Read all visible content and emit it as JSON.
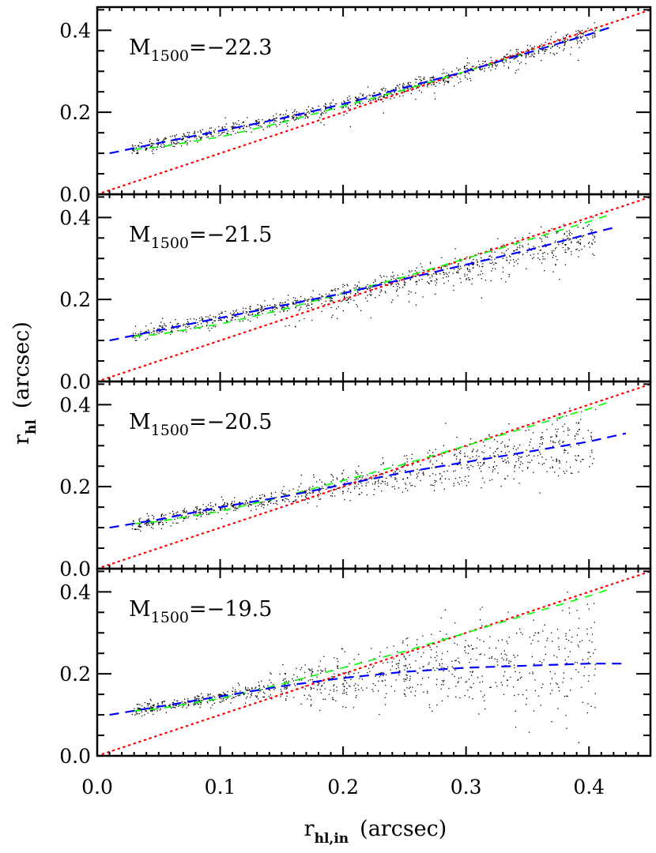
{
  "figure": {
    "xlabel": {
      "main": "r",
      "sub": "hl,in",
      "unit": "(arcsec)"
    },
    "ylabel": {
      "main": "r",
      "sub": "hl",
      "unit": "(arcsec)"
    },
    "colors": {
      "scatter": "#000000",
      "blue_fit": "#0000ff",
      "green_model": "#00ff00",
      "red_one_to_one": "#ff0000",
      "axes": "#000000"
    }
  },
  "chart_data": {
    "type": "scatter",
    "layout": "4 vertically stacked panels sharing x-axis",
    "xlabel": "r_hl,in (arcsec)",
    "ylabel": "r_hl (arcsec)",
    "xlim": [
      0.0,
      0.45
    ],
    "ylim": [
      -0.01,
      0.45
    ],
    "xticks": [
      "0.0",
      "0.1",
      "0.2",
      "0.3",
      "0.4"
    ],
    "yticks": [
      "0.0",
      "0.2",
      "0.4"
    ],
    "grid": false,
    "legend": "none",
    "series_descriptions": {
      "scatter": "black points: measured r_hl vs input r_hl for simulated galaxies",
      "blue_dashed": "blue dashed line: median relation / fit",
      "green_dashed": "green dashed line: expected relation (PSF-convolved)",
      "red_dotted": "red dotted line: one-to-one relation r_hl = r_hl,in"
    },
    "panels": [
      {
        "label_main": "M",
        "label_sub": "1500",
        "label_value": "=−22.3",
        "blue_dashed": {
          "x": [
            0.01,
            0.05,
            0.1,
            0.15,
            0.2,
            0.25,
            0.3,
            0.35,
            0.4,
            0.42
          ],
          "y": [
            0.1,
            0.125,
            0.155,
            0.185,
            0.22,
            0.26,
            0.3,
            0.345,
            0.39,
            0.41
          ]
        },
        "green_dashed": {
          "x": [
            0.03,
            0.05,
            0.1,
            0.15,
            0.2,
            0.25,
            0.3,
            0.35,
            0.4,
            0.42
          ],
          "y": [
            0.11,
            0.115,
            0.14,
            0.175,
            0.215,
            0.255,
            0.3,
            0.345,
            0.39,
            0.41
          ]
        },
        "red_dotted": {
          "x": [
            0.0,
            0.45
          ],
          "y": [
            0.0,
            0.45
          ]
        },
        "scatter_range": {
          "x": [
            0.03,
            0.4
          ],
          "y_spread": "tight, ~±0.015 around blue line, few low outliers above x=0.2"
        }
      },
      {
        "label_main": "M",
        "label_sub": "1500",
        "label_value": "=−21.5",
        "blue_dashed": {
          "x": [
            0.01,
            0.05,
            0.1,
            0.15,
            0.2,
            0.25,
            0.3,
            0.35,
            0.4,
            0.42
          ],
          "y": [
            0.1,
            0.125,
            0.155,
            0.185,
            0.215,
            0.25,
            0.285,
            0.32,
            0.36,
            0.375
          ]
        },
        "green_dashed": {
          "x": [
            0.03,
            0.05,
            0.1,
            0.15,
            0.2,
            0.25,
            0.3,
            0.35,
            0.4,
            0.42
          ],
          "y": [
            0.11,
            0.115,
            0.14,
            0.175,
            0.215,
            0.255,
            0.3,
            0.345,
            0.39,
            0.41
          ]
        },
        "red_dotted": {
          "x": [
            0.0,
            0.45
          ],
          "y": [
            0.0,
            0.45
          ]
        },
        "scatter_range": {
          "x": [
            0.03,
            0.4
          ],
          "y_spread": "moderate, increasing scatter beyond x=0.2"
        }
      },
      {
        "label_main": "M",
        "label_sub": "1500",
        "label_value": "=−20.5",
        "blue_dashed": {
          "x": [
            0.01,
            0.05,
            0.1,
            0.15,
            0.2,
            0.25,
            0.3,
            0.35,
            0.4,
            0.43
          ],
          "y": [
            0.1,
            0.12,
            0.15,
            0.175,
            0.205,
            0.235,
            0.26,
            0.285,
            0.31,
            0.33
          ]
        },
        "green_dashed": {
          "x": [
            0.03,
            0.05,
            0.1,
            0.15,
            0.2,
            0.25,
            0.3,
            0.35,
            0.4,
            0.42
          ],
          "y": [
            0.11,
            0.115,
            0.14,
            0.175,
            0.215,
            0.255,
            0.3,
            0.345,
            0.39,
            0.41
          ]
        },
        "red_dotted": {
          "x": [
            0.0,
            0.45
          ],
          "y": [
            0.0,
            0.45
          ]
        },
        "scatter_range": {
          "x": [
            0.03,
            0.4
          ],
          "y_spread": "large scatter beyond x=0.2, points between ~0.15 and ~0.35"
        }
      },
      {
        "label_main": "M",
        "label_sub": "1500",
        "label_value": "=−19.5",
        "blue_dashed": {
          "x": [
            0.01,
            0.05,
            0.1,
            0.15,
            0.2,
            0.25,
            0.3,
            0.35,
            0.4,
            0.43
          ],
          "y": [
            0.1,
            0.12,
            0.145,
            0.17,
            0.19,
            0.205,
            0.215,
            0.22,
            0.225,
            0.225
          ]
        },
        "green_dashed": {
          "x": [
            0.03,
            0.05,
            0.1,
            0.15,
            0.2,
            0.25,
            0.3,
            0.35,
            0.4,
            0.42
          ],
          "y": [
            0.11,
            0.115,
            0.14,
            0.175,
            0.215,
            0.255,
            0.3,
            0.345,
            0.39,
            0.41
          ]
        },
        "red_dotted": {
          "x": [
            0.0,
            0.45
          ],
          "y": [
            0.0,
            0.45
          ]
        },
        "scatter_range": {
          "x": [
            0.03,
            0.4
          ],
          "y_spread": "very large scatter beyond x=0.15, points between ~0.12 and ~0.28, saturating near 0.22"
        }
      }
    ]
  }
}
